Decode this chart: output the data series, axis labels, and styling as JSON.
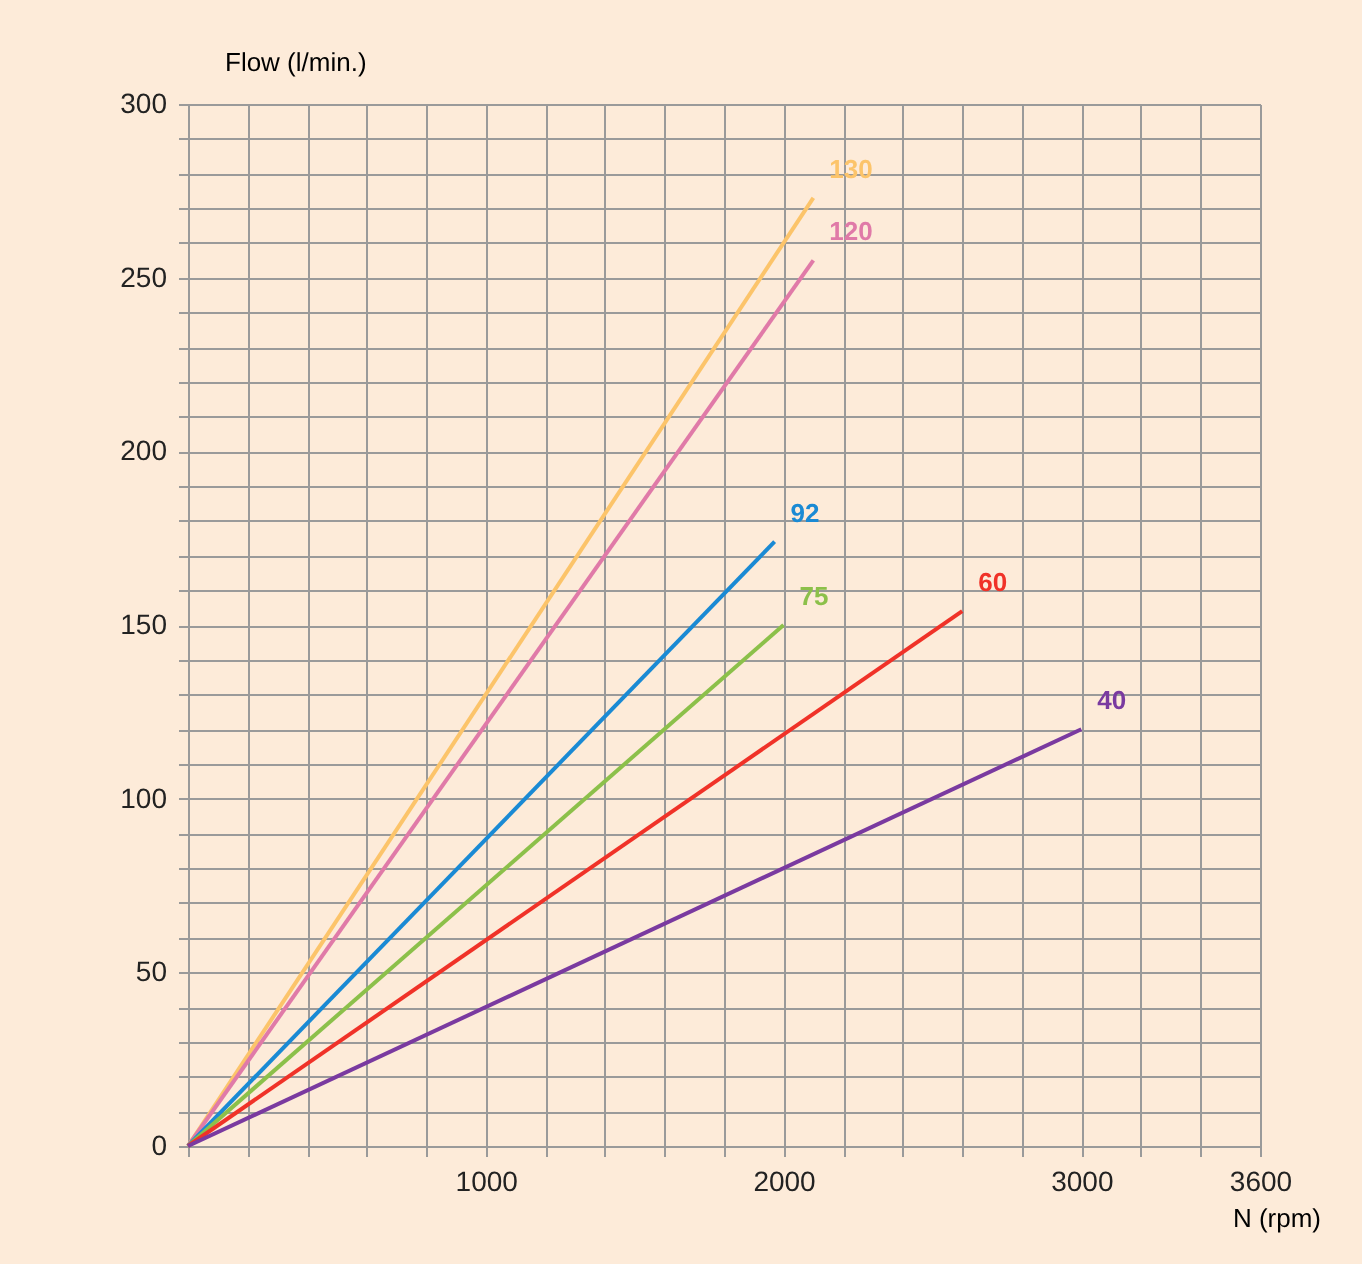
{
  "chart_data": {
    "type": "line",
    "xlabel": "N (rpm)",
    "ylabel": "Flow (l/min.)",
    "series": [
      {
        "name": "130",
        "color": "#fcc46a",
        "x": [
          0,
          2100
        ],
        "values": [
          0,
          273
        ]
      },
      {
        "name": "120",
        "color": "#e07aa8",
        "x": [
          0,
          2100
        ],
        "values": [
          0,
          255
        ]
      },
      {
        "name": "92",
        "color": "#1a8ad4",
        "x": [
          0,
          1970
        ],
        "values": [
          0,
          174
        ]
      },
      {
        "name": "75",
        "color": "#8cc04a",
        "x": [
          0,
          2000
        ],
        "values": [
          0,
          150
        ]
      },
      {
        "name": "60",
        "color": "#f03228",
        "x": [
          0,
          2600
        ],
        "values": [
          0,
          154
        ]
      },
      {
        "name": "40",
        "color": "#7a3aa0",
        "x": [
          0,
          3000
        ],
        "values": [
          0,
          120
        ]
      }
    ],
    "xlim": [
      0,
      3600
    ],
    "xticks": [
      {
        "value": 0,
        "label": null
      },
      {
        "value": 200,
        "label": null
      },
      {
        "value": 400,
        "label": null
      },
      {
        "value": 600,
        "label": null
      },
      {
        "value": 800,
        "label": null
      },
      1000,
      {
        "value": 1200,
        "label": null
      },
      {
        "value": 1400,
        "label": null
      },
      {
        "value": 1600,
        "label": null
      },
      {
        "value": 1800,
        "label": null
      },
      2000,
      {
        "value": 2200,
        "label": null
      },
      {
        "value": 2400,
        "label": null
      },
      {
        "value": 2600,
        "label": null
      },
      {
        "value": 2800,
        "label": null
      },
      3000,
      {
        "value": 3200,
        "label": null
      },
      {
        "value": 3400,
        "label": null
      },
      3600
    ],
    "ylim": [
      0,
      300
    ],
    "yticks": [
      0,
      {
        "value": 10,
        "label": null
      },
      {
        "value": 20,
        "label": null
      },
      {
        "value": 30,
        "label": null
      },
      {
        "value": 40,
        "label": null
      },
      50,
      {
        "value": 60,
        "label": null
      },
      {
        "value": 70,
        "label": null
      },
      {
        "value": 80,
        "label": null
      },
      {
        "value": 90,
        "label": null
      },
      100,
      {
        "value": 110,
        "label": null
      },
      {
        "value": 120,
        "label": null
      },
      {
        "value": 130,
        "label": null
      },
      {
        "value": 140,
        "label": null
      },
      150,
      {
        "value": 160,
        "label": null
      },
      {
        "value": 170,
        "label": null
      },
      {
        "value": 180,
        "label": null
      },
      {
        "value": 190,
        "label": null
      },
      200,
      {
        "value": 210,
        "label": null
      },
      {
        "value": 220,
        "label": null
      },
      {
        "value": 230,
        "label": null
      },
      {
        "value": 240,
        "label": null
      },
      250,
      {
        "value": 260,
        "label": null
      },
      {
        "value": 270,
        "label": null
      },
      {
        "value": 280,
        "label": null
      },
      {
        "value": 290,
        "label": null
      },
      300
    ],
    "grid": true,
    "legend": false,
    "marker": "none",
    "line_style": "solid"
  }
}
